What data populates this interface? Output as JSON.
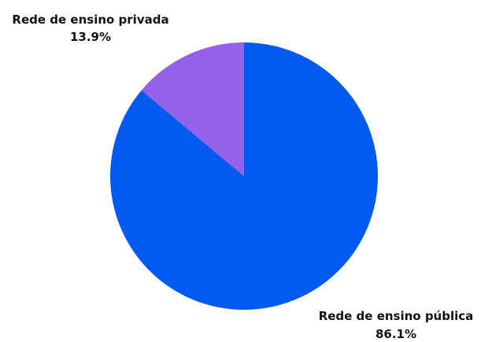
{
  "chart_data": {
    "type": "pie",
    "title": "",
    "legend": "none",
    "start_angle_deg": 0,
    "direction": "clockwise",
    "slices": [
      {
        "label": "Rede de ensino pública",
        "value": 86.1,
        "value_label": "86.1%",
        "color": "#005af0"
      },
      {
        "label": "Rede de ensino privada",
        "value": 13.9,
        "value_label": "13.9%",
        "color": "#9461ea"
      }
    ]
  }
}
